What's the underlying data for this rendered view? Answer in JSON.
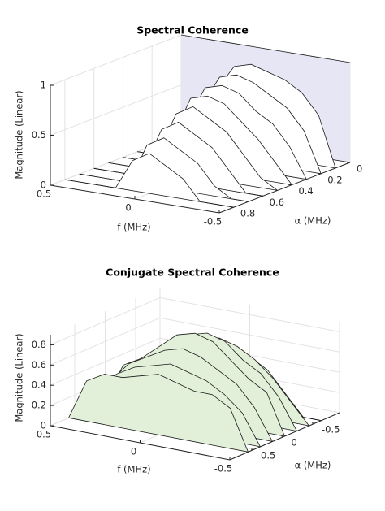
{
  "chart_data": [
    {
      "type": "waterfall3d",
      "title": "Spectral Coherence",
      "xlabel": "f (MHz)",
      "ylabel": "α (MHz)",
      "zlabel": "Magnitude (Linear)",
      "xlim": [
        0.5,
        -0.5
      ],
      "xticks": [
        0.5,
        0,
        -0.5
      ],
      "ylim": [
        0,
        0.9
      ],
      "yticks": [
        0,
        0.2,
        0.4,
        0.6,
        0.8
      ],
      "zlim": [
        0,
        1
      ],
      "zticks": [
        0,
        0.5,
        1
      ],
      "grid": true,
      "x": [
        0.5,
        0.4,
        0.3,
        0.2,
        0.1,
        0,
        -0.1,
        -0.2,
        -0.3,
        -0.4,
        -0.5
      ],
      "series": [
        {
          "alpha": 0,
          "color": "#e6e6f5",
          "values": [
            1,
            1,
            1,
            1,
            1,
            1,
            1,
            1,
            1,
            1,
            1
          ]
        },
        {
          "alpha": 0.1,
          "color": "#ffffff",
          "values": [
            0,
            0,
            0.2,
            0.6,
            0.85,
            0.9,
            0.85,
            0.8,
            0.7,
            0.5,
            0
          ]
        },
        {
          "alpha": 0.2,
          "color": "#ffffff",
          "values": [
            0,
            0,
            0.1,
            0.5,
            0.8,
            0.85,
            0.8,
            0.7,
            0.6,
            0.4,
            0
          ]
        },
        {
          "alpha": 0.3,
          "color": "#ffffff",
          "values": [
            0,
            0,
            0,
            0.4,
            0.75,
            0.8,
            0.75,
            0.6,
            0.5,
            0.3,
            0
          ]
        },
        {
          "alpha": 0.4,
          "color": "#ffffff",
          "values": [
            0,
            0,
            0,
            0.3,
            0.7,
            0.75,
            0.7,
            0.55,
            0.4,
            0.2,
            0
          ]
        },
        {
          "alpha": 0.5,
          "color": "#ffffff",
          "values": [
            0,
            0,
            0,
            0.2,
            0.6,
            0.7,
            0.6,
            0.5,
            0.3,
            0.1,
            0
          ]
        },
        {
          "alpha": 0.6,
          "color": "#ffffff",
          "values": [
            0,
            0,
            0,
            0.1,
            0.5,
            0.6,
            0.5,
            0.4,
            0.2,
            0,
            0
          ]
        },
        {
          "alpha": 0.7,
          "color": "#ffffff",
          "values": [
            0,
            0,
            0,
            0,
            0.4,
            0.5,
            0.4,
            0.3,
            0.1,
            0,
            0
          ]
        },
        {
          "alpha": 0.8,
          "color": "#ffffff",
          "values": [
            0,
            0,
            0,
            0,
            0.3,
            0.4,
            0.3,
            0.2,
            0,
            0,
            0
          ]
        }
      ]
    },
    {
      "type": "waterfall3d",
      "title": "Conjugate Spectral Coherence",
      "xlabel": "f (MHz)",
      "ylabel": "α (MHz)",
      "zlabel": "Magnitude (Linear)",
      "xlim": [
        0.5,
        -0.5
      ],
      "xticks": [
        0.5,
        0,
        -0.5
      ],
      "ylim": [
        -0.9,
        0.9
      ],
      "yticks": [
        -0.5,
        0,
        0.5
      ],
      "zlim": [
        0,
        0.9
      ],
      "zticks": [
        0,
        0.2,
        0.4,
        0.6,
        0.8
      ],
      "grid": true,
      "x": [
        0.5,
        0.4,
        0.3,
        0.2,
        0.1,
        0,
        -0.1,
        -0.2,
        -0.3,
        -0.4,
        -0.5
      ],
      "series": [
        {
          "alpha": -0.6,
          "color": "#e2f0d9",
          "values": [
            0,
            0,
            0.2,
            0.4,
            0.5,
            0.55,
            0.5,
            0.4,
            0.2,
            0,
            0
          ]
        },
        {
          "alpha": -0.4,
          "color": "#e2f0d9",
          "values": [
            0,
            0.2,
            0.4,
            0.55,
            0.65,
            0.7,
            0.65,
            0.55,
            0.4,
            0.2,
            0
          ]
        },
        {
          "alpha": -0.2,
          "color": "#e2f0d9",
          "values": [
            0,
            0.3,
            0.5,
            0.6,
            0.75,
            0.8,
            0.75,
            0.6,
            0.5,
            0.3,
            0
          ]
        },
        {
          "alpha": 0,
          "color": "#e2f0d9",
          "values": [
            0,
            0.4,
            0.5,
            0.65,
            0.8,
            0.85,
            0.8,
            0.65,
            0.5,
            0.4,
            0
          ]
        },
        {
          "alpha": 0.2,
          "color": "#e2f0d9",
          "values": [
            0,
            0.3,
            0.5,
            0.6,
            0.7,
            0.75,
            0.7,
            0.6,
            0.5,
            0.3,
            0
          ]
        },
        {
          "alpha": 0.4,
          "color": "#e2f0d9",
          "values": [
            0,
            0.3,
            0.45,
            0.55,
            0.6,
            0.65,
            0.6,
            0.55,
            0.45,
            0.3,
            0
          ]
        },
        {
          "alpha": 0.6,
          "color": "#e2f0d9",
          "values": [
            0,
            0.4,
            0.5,
            0.5,
            0.55,
            0.6,
            0.55,
            0.5,
            0.5,
            0.4,
            0
          ]
        }
      ]
    }
  ]
}
